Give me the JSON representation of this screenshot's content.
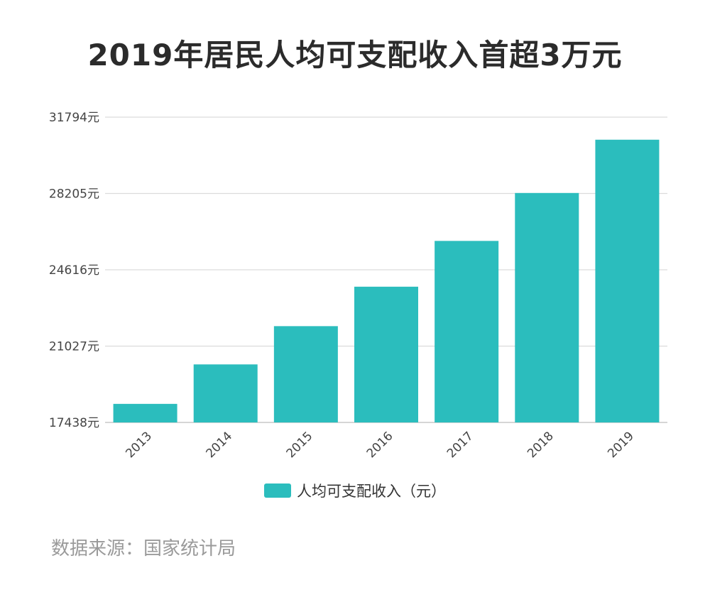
{
  "title": "2019年居民人均可支配收入首超3万元",
  "source": "数据来源：国家统计局",
  "chart_data": {
    "type": "bar",
    "categories": [
      "2013",
      "2014",
      "2015",
      "2016",
      "2017",
      "2018",
      "2019"
    ],
    "series": [
      {
        "name": "人均可支配收入（元）",
        "values": [
          18311,
          20167,
          21966,
          23821,
          25974,
          28228,
          30733
        ],
        "color": "#2bbdbd"
      }
    ],
    "y_ticks": [
      "17438元",
      "21027元",
      "24616元",
      "28205元",
      "31794元"
    ],
    "ylim": [
      17438,
      31794
    ],
    "grid": true,
    "legend_position": "bottom"
  }
}
